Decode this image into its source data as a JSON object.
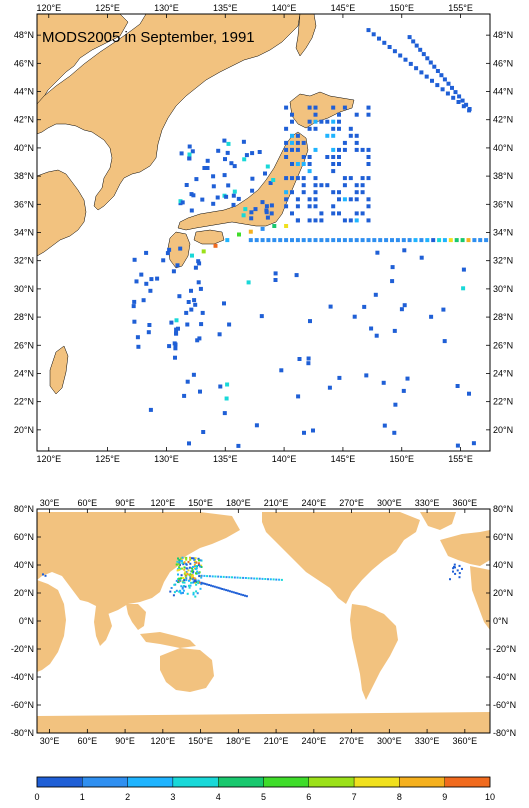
{
  "top_map": {
    "title": "MODS2005 in September, 1991",
    "x_ticks": [
      "120°E",
      "125°E",
      "130°E",
      "135°E",
      "140°E",
      "145°E",
      "150°E",
      "155°E"
    ],
    "y_ticks_left": [
      "48°N",
      "46°N",
      "44°N",
      "42°N",
      "40°N",
      "38°N",
      "36°N",
      "34°N",
      "32°N",
      "30°N",
      "28°N",
      "26°N",
      "24°N",
      "22°N",
      "20°N"
    ],
    "y_ticks_right": [
      "48°N",
      "46°N",
      "44°N",
      "42°N",
      "40°N",
      "38°N",
      "36°N",
      "34°N",
      "32°N",
      "30°N",
      "28°N",
      "26°N",
      "24°N",
      "22°N",
      "20°N"
    ],
    "extent": {
      "lon": [
        119,
        157.5
      ],
      "lat": [
        18.5,
        49.5
      ]
    },
    "land_color": "#f2c27f",
    "ocean_color": "#ffffff"
  },
  "bottom_map": {
    "x_ticks": [
      "30°E",
      "60°E",
      "90°E",
      "120°E",
      "150°E",
      "180°E",
      "210°E",
      "240°E",
      "270°E",
      "300°E",
      "330°E",
      "360°E"
    ],
    "y_ticks": [
      "80°N",
      "60°N",
      "40°N",
      "20°N",
      "0°N",
      "-20°N",
      "-40°N",
      "-60°N",
      "-80°N"
    ],
    "extent": {
      "lon": [
        20,
        380
      ],
      "lat": [
        -80,
        80
      ]
    },
    "land_color": "#f2c27f"
  },
  "colorbar": {
    "labels": [
      "0",
      "1",
      "2",
      "3",
      "4",
      "5",
      "6",
      "7",
      "8",
      "9",
      "10"
    ],
    "colors": [
      "#1f5fd6",
      "#2f8ff0",
      "#1fb4ff",
      "#19d8d8",
      "#19c86e",
      "#3fdc2a",
      "#9be019",
      "#f0e01e",
      "#f5b01e",
      "#f06a1e"
    ]
  }
}
